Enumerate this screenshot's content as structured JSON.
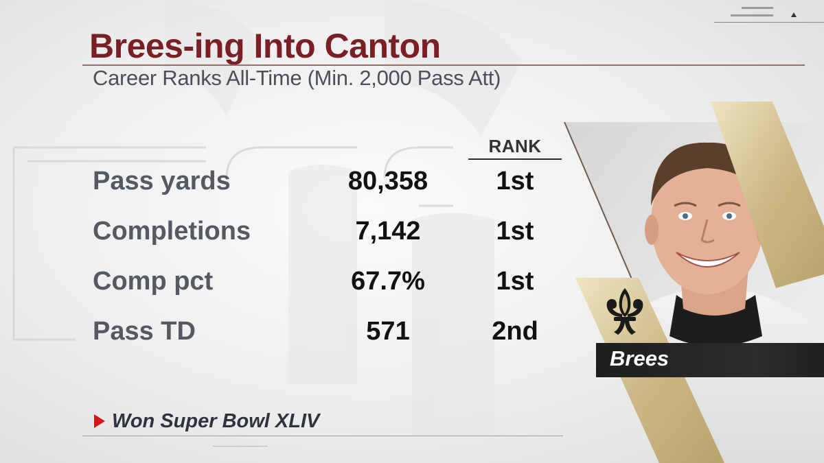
{
  "graphic": {
    "title": "Brees-ing Into Canton",
    "subtitle": "Career Ranks All-Time (Min. 2,000 Pass Att)",
    "rank_header": "RANK"
  },
  "stats": [
    {
      "label": "Pass yards",
      "value": "80,358",
      "rank": "1st"
    },
    {
      "label": "Completions",
      "value": "7,142",
      "rank": "1st"
    },
    {
      "label": "Comp pct",
      "value": "67.7%",
      "rank": "1st"
    },
    {
      "label": "Pass TD",
      "value": "571",
      "rank": "2nd"
    }
  ],
  "footnote": {
    "icon": "red-triangle-bullet-icon",
    "text": "Won Super Bowl XLIV"
  },
  "player": {
    "name": "Brees",
    "team_logo_icon": "fleur-de-lis-icon",
    "photo": "player-headshot"
  },
  "colors": {
    "title": "#7b1f27",
    "accent_gold": "#c9b68a",
    "bullet_red": "#d8141b",
    "name_bar": "#1e1e1e"
  }
}
